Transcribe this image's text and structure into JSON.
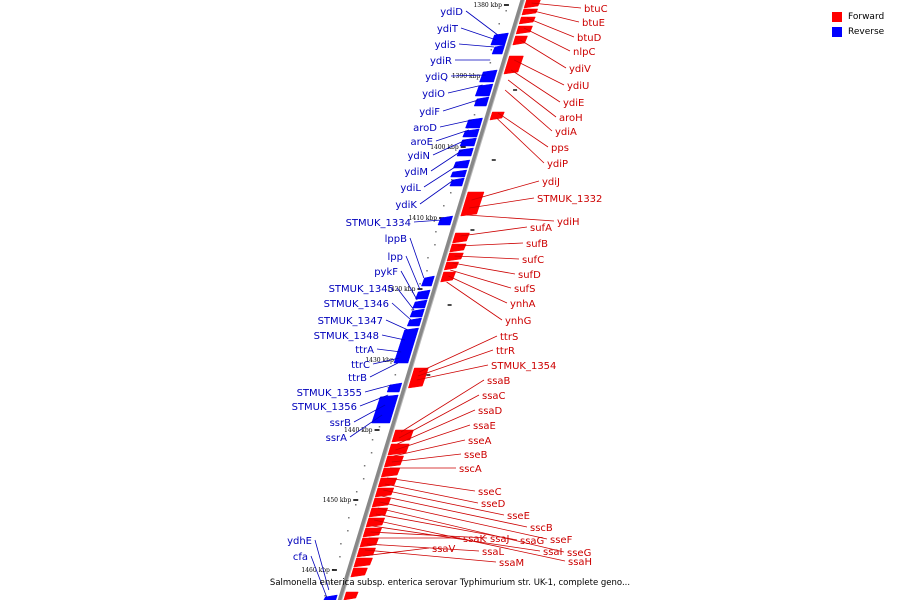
{
  "caption": "Salmonella enterica subsp. enterica serovar Typhimurium str. UK-1, complete geno...",
  "legend": [
    {
      "label": "Forward",
      "color": "#ff0000"
    },
    {
      "label": "Reverse",
      "color": "#0000ff"
    }
  ],
  "colors": {
    "forward": "#ff0000",
    "forward_label": "#cc0000",
    "reverse": "#0000ff",
    "reverse_label": "#0000bb",
    "backbone": "#888888"
  },
  "ticks": [
    "1380 kbp",
    "1390 kbp",
    "1400 kbp",
    "1410 kbp",
    "1420 kbp",
    "1430 kbp",
    "1440 kbp",
    "1450 kbp",
    "1460 kbp"
  ],
  "reverse_labels": [
    "ydiD",
    "ydiT",
    "ydiS",
    "ydiR",
    "ydiQ",
    "ydiO",
    "ydiF",
    "aroD",
    "aroE",
    "ydiN",
    "ydiM",
    "ydiL",
    "ydiK",
    "STMUK_1334",
    "lppB",
    "lpp",
    "pykF",
    "STMUK_1345",
    "STMUK_1346",
    "STMUK_1347",
    "STMUK_1348",
    "ttrA",
    "ttrC",
    "ttrB",
    "STMUK_1355",
    "STMUK_1356",
    "ssrB",
    "ssrA",
    "ydhE",
    "cfa"
  ],
  "forward_labels": [
    "btuC",
    "btuE",
    "btuD",
    "nlpC",
    "ydiV",
    "ydiU",
    "ydiE",
    "aroH",
    "ydiA",
    "pps",
    "ydiP",
    "ydiJ",
    "STMUK_1332",
    "ydiH",
    "sufA",
    "sufB",
    "sufC",
    "sufD",
    "sufS",
    "ynhA",
    "ynhG",
    "ttrS",
    "ttrR",
    "STMUK_1354",
    "ssaB",
    "ssaC",
    "ssaD",
    "ssaE",
    "sseA",
    "sseB",
    "sscA",
    "sseC",
    "sseD",
    "sseE",
    "sscB",
    "sseF",
    "sseG",
    "ssaG",
    "ssaH",
    "ssaI",
    "ssaJ",
    "ssaK",
    "ssaL",
    "ssaM",
    "ssaV"
  ]
}
